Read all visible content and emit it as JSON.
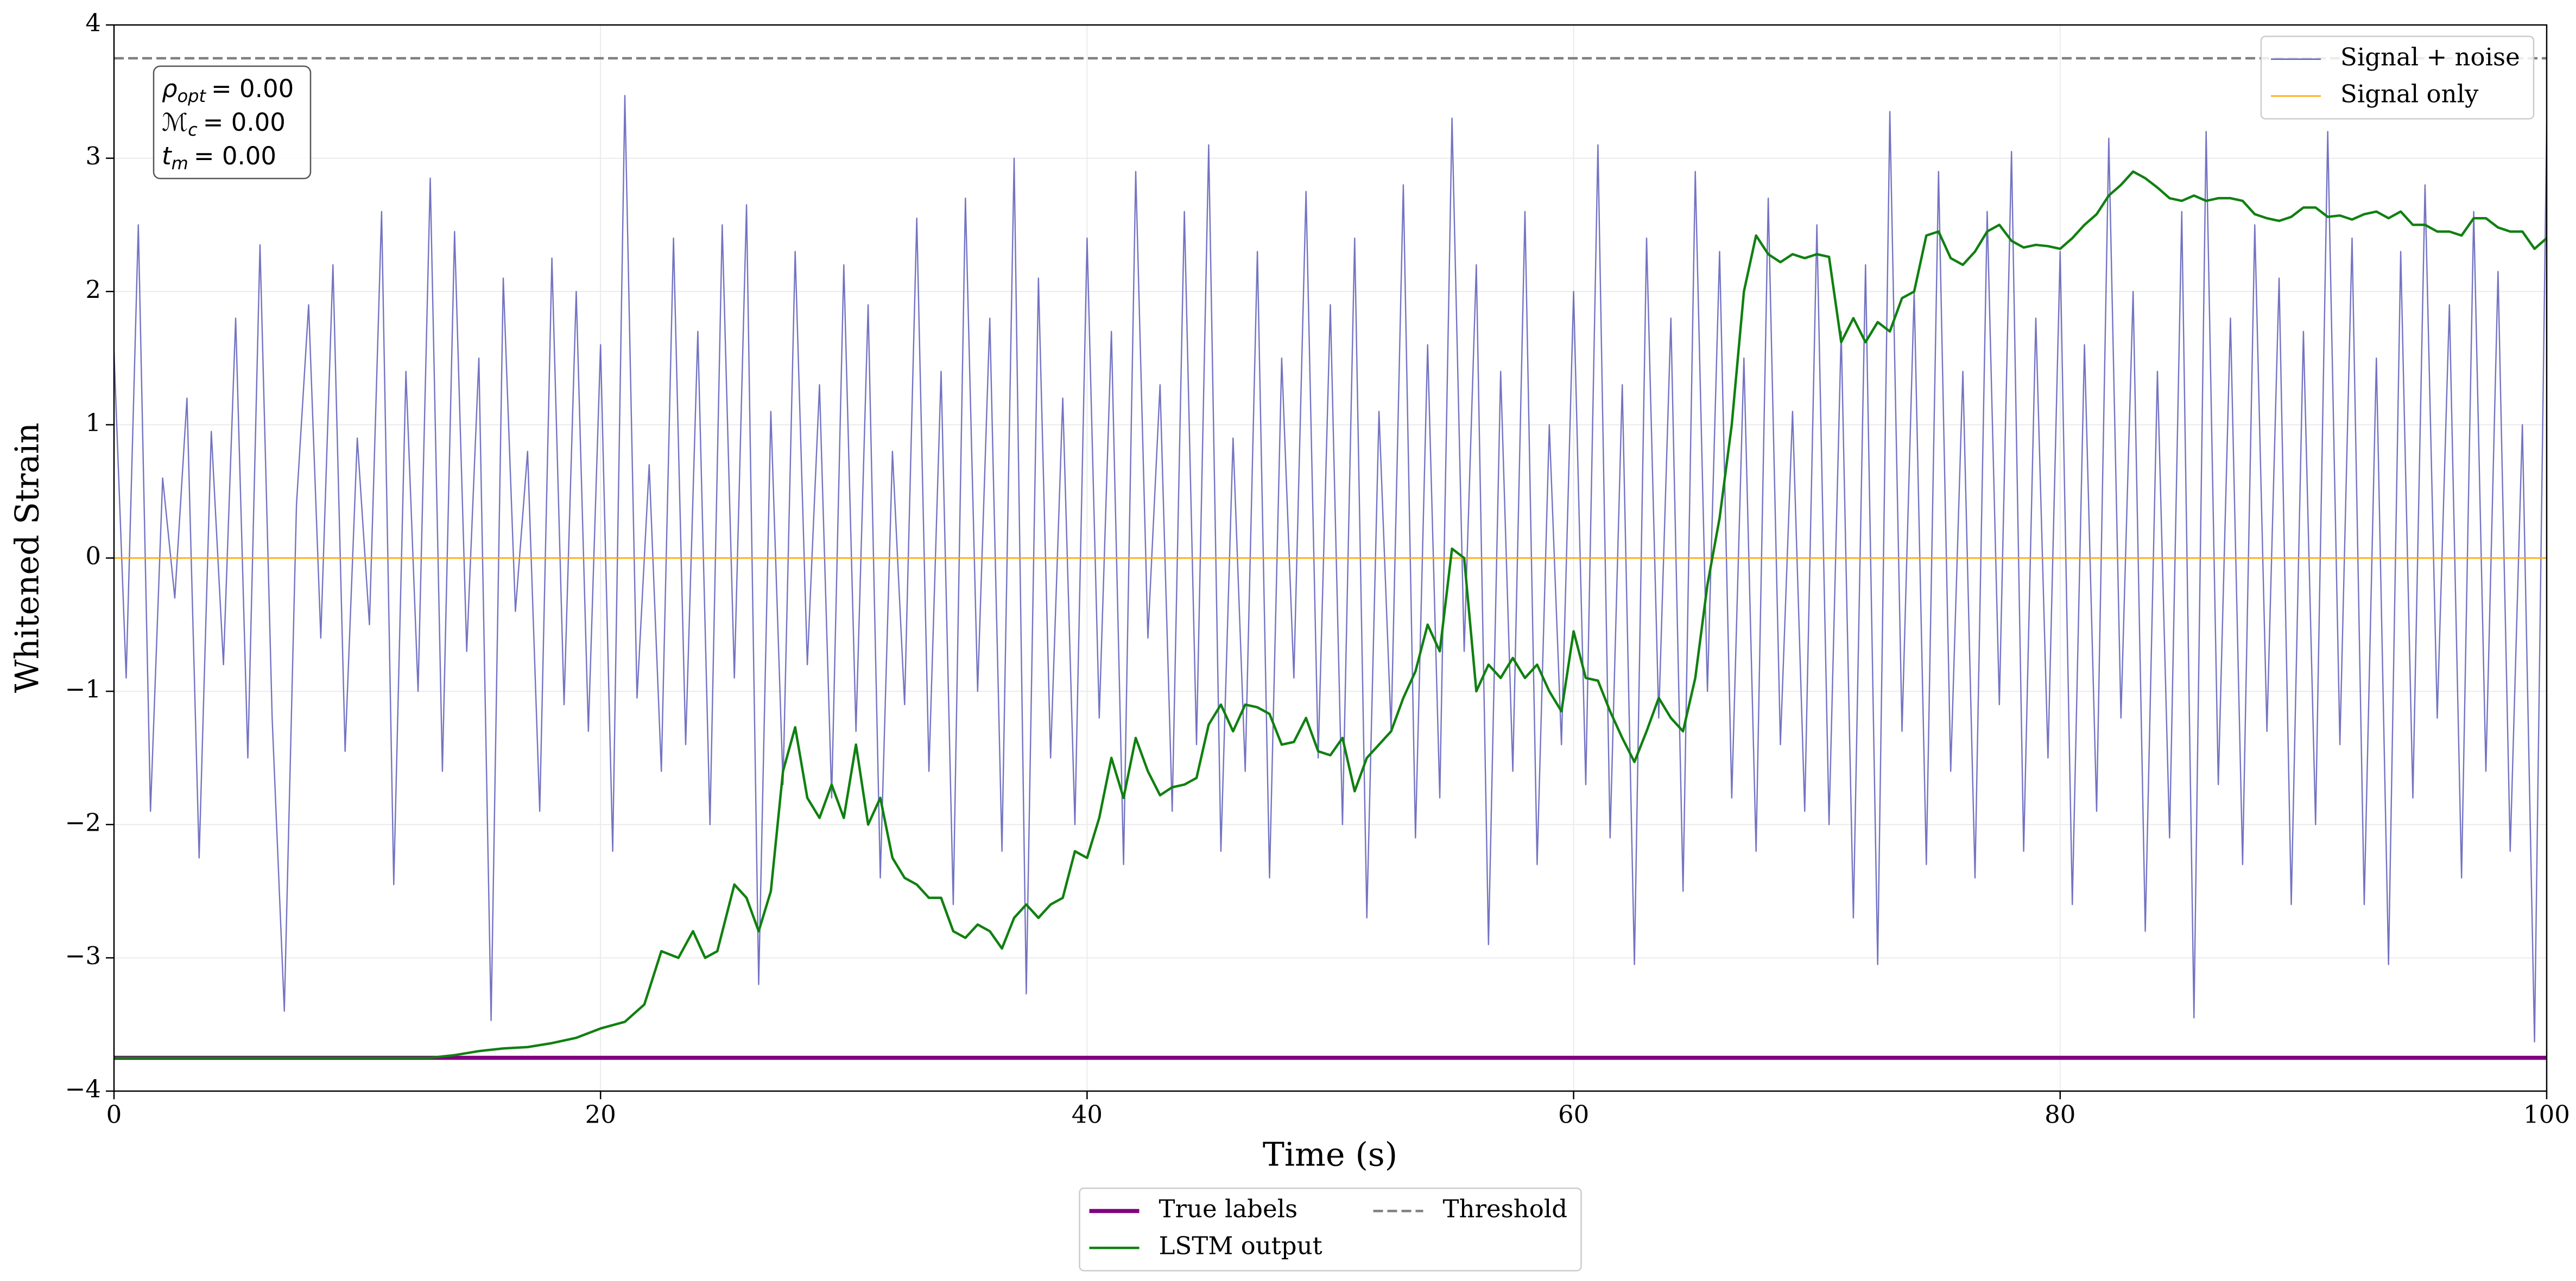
{
  "chart_data": {
    "type": "line",
    "xlabel": "Time (s)",
    "ylabel": "Whitened Strain",
    "xlim": [
      0,
      100
    ],
    "ylim": [
      -4,
      4
    ],
    "xticks": [
      0,
      20,
      40,
      60,
      80,
      100
    ],
    "yticks": [
      {
        "value": -4,
        "label": "−4"
      },
      {
        "value": -3,
        "label": "−3"
      },
      {
        "value": -2,
        "label": "−2"
      },
      {
        "value": -1,
        "label": "−1"
      },
      0,
      1,
      2,
      3,
      4
    ],
    "grid": true,
    "annotation": [
      {
        "symbol": "ρ",
        "subscript": "opt",
        "text": "= 0.00"
      },
      {
        "symbol": "ℳ",
        "subscript": "c",
        "text": "= 0.00"
      },
      {
        "symbol": "t",
        "subscript": "m",
        "text": "= 0.00"
      }
    ],
    "series": [
      {
        "name": "Signal + noise",
        "color": "#5b5bb8",
        "linewidth": 2.4,
        "linestyle": "solid",
        "legend": "upper right",
        "x": [
          0,
          0.5,
          1,
          1.5,
          2,
          2.5,
          3,
          3.5,
          4,
          4.5,
          5,
          5.5,
          6,
          6.5,
          7,
          7.5,
          8,
          8.5,
          9,
          9.5,
          10,
          10.5,
          11,
          11.5,
          12,
          12.5,
          13,
          13.5,
          14,
          14.5,
          15,
          15.5,
          16,
          16.5,
          17,
          17.5,
          18,
          18.5,
          19,
          19.5,
          20,
          20.5,
          21,
          21.5,
          22,
          22.5,
          23,
          23.5,
          24,
          24.5,
          25,
          25.5,
          26,
          26.5,
          27,
          27.5,
          28,
          28.5,
          29,
          29.5,
          30,
          30.5,
          31,
          31.5,
          32,
          32.5,
          33,
          33.5,
          34,
          34.5,
          35,
          35.5,
          36,
          36.5,
          37,
          37.5,
          38,
          38.5,
          39,
          39.5,
          40,
          40.5,
          41,
          41.5,
          42,
          42.5,
          43,
          43.5,
          44,
          44.5,
          45,
          45.5,
          46,
          46.5,
          47,
          47.5,
          48,
          48.5,
          49,
          49.5,
          50,
          50.5,
          51,
          51.5,
          52,
          52.5,
          53,
          53.5,
          54,
          54.5,
          55,
          55.5,
          56,
          56.5,
          57,
          57.5,
          58,
          58.5,
          59,
          59.5,
          60,
          60.5,
          61,
          61.5,
          62,
          62.5,
          63,
          63.5,
          64,
          64.5,
          65,
          65.5,
          66,
          66.5,
          67,
          67.5,
          68,
          68.5,
          69,
          69.5,
          70,
          70.5,
          71,
          71.5,
          72,
          72.5,
          73,
          73.5,
          74,
          74.5,
          75,
          75.5,
          76,
          76.5,
          77,
          77.5,
          78,
          78.5,
          79,
          79.5,
          80,
          80.5,
          81,
          81.5,
          82,
          82.5,
          83,
          83.5,
          84,
          84.5,
          85,
          85.5,
          86,
          86.5,
          87,
          87.5,
          88,
          88.5,
          89,
          89.5,
          90,
          90.5,
          91,
          91.5,
          92,
          92.5,
          93,
          93.5,
          94,
          94.5,
          95,
          95.5,
          96,
          96.5,
          97,
          97.5,
          98,
          98.5,
          99,
          99.5,
          100
        ],
        "values": [
          1.55,
          -0.9,
          2.5,
          -1.9,
          0.6,
          -0.3,
          1.2,
          -2.25,
          0.95,
          -0.8,
          1.8,
          -1.5,
          2.35,
          -1.2,
          -3.4,
          0.4,
          1.9,
          -0.6,
          2.2,
          -1.45,
          0.9,
          -0.5,
          2.6,
          -2.45,
          1.4,
          -1.0,
          2.85,
          -1.6,
          2.45,
          -0.7,
          1.5,
          -3.47,
          2.1,
          -0.4,
          0.8,
          -1.9,
          2.25,
          -1.1,
          2.0,
          -1.3,
          1.6,
          -2.2,
          3.47,
          -1.05,
          0.7,
          -1.6,
          2.4,
          -1.4,
          1.7,
          -2.0,
          2.5,
          -0.9,
          2.65,
          -3.2,
          1.1,
          -1.7,
          2.3,
          -0.8,
          1.3,
          -1.8,
          2.2,
          -1.3,
          1.9,
          -2.4,
          0.8,
          -1.1,
          2.55,
          -1.6,
          1.4,
          -2.6,
          2.7,
          -1.0,
          1.8,
          -2.2,
          3.0,
          -3.27,
          2.1,
          -1.5,
          1.2,
          -2.0,
          2.4,
          -1.2,
          1.7,
          -2.3,
          2.9,
          -0.6,
          1.3,
          -1.9,
          2.6,
          -1.4,
          3.1,
          -2.2,
          0.9,
          -1.6,
          2.3,
          -2.4,
          1.5,
          -0.9,
          2.75,
          -1.5,
          1.9,
          -2.0,
          2.4,
          -2.7,
          1.1,
          -1.3,
          2.8,
          -2.1,
          1.6,
          -1.8,
          3.3,
          -0.7,
          2.2,
          -2.9,
          1.4,
          -1.6,
          2.6,
          -2.3,
          1.0,
          -1.4,
          2.0,
          -1.7,
          3.1,
          -2.1,
          1.3,
          -3.05,
          2.4,
          -1.2,
          1.8,
          -2.5,
          2.9,
          -1.0,
          2.3,
          -1.8,
          1.5,
          -2.2,
          2.7,
          -1.4,
          1.1,
          -1.9,
          2.5,
          -2.0,
          1.7,
          -2.7,
          2.2,
          -3.05,
          3.35,
          -1.3,
          2.0,
          -2.3,
          2.9,
          -1.6,
          1.4,
          -2.4,
          2.6,
          -1.1,
          3.05,
          -2.2,
          1.8,
          -1.5,
          2.3,
          -2.6,
          1.6,
          -1.9,
          3.15,
          -1.2,
          2.0,
          -2.8,
          1.4,
          -2.1,
          2.6,
          -3.45,
          3.2,
          -1.7,
          1.8,
          -2.3,
          2.5,
          -1.3,
          2.1,
          -2.6,
          1.7,
          -2.0,
          3.2,
          -1.4,
          2.4,
          -2.6,
          1.5,
          -3.05,
          2.3,
          -1.8,
          2.8,
          -1.2,
          1.9,
          -2.4,
          2.6,
          -1.6,
          2.15,
          -2.2,
          1.0,
          -3.63,
          3.25
        ]
      },
      {
        "name": "Signal only",
        "color": "#ffa500",
        "linewidth": 2.4,
        "linestyle": "solid",
        "legend": "upper right",
        "x": [
          0,
          100
        ],
        "values": [
          0,
          0
        ]
      },
      {
        "name": "True labels",
        "color": "#800080",
        "linewidth": 7.5,
        "linestyle": "solid",
        "legend": "lower center outside",
        "x": [
          0,
          100
        ],
        "values": [
          -3.75,
          -3.75
        ]
      },
      {
        "name": "LSTM output",
        "color": "#108010",
        "linewidth": 4.5,
        "linestyle": "solid",
        "legend": "lower center outside",
        "x": [
          0,
          13,
          14,
          15,
          16,
          17,
          18,
          19,
          20,
          21,
          21.8,
          22.5,
          23.2,
          23.8,
          24.3,
          24.8,
          25.5,
          26,
          26.5,
          27,
          27.5,
          28,
          28.5,
          29,
          29.5,
          30,
          30.5,
          31,
          31.5,
          32,
          32.5,
          33,
          33.5,
          34,
          34.5,
          35,
          35.5,
          36,
          36.5,
          37,
          37.5,
          38,
          38.5,
          39,
          39.5,
          40,
          40.5,
          41,
          41.5,
          42,
          42.5,
          43,
          43.5,
          44,
          44.5,
          45,
          45.5,
          46,
          46.5,
          47,
          47.5,
          48,
          48.5,
          49,
          49.5,
          50,
          50.5,
          51,
          51.5,
          52,
          52.5,
          53,
          53.5,
          54,
          54.5,
          55,
          55.5,
          56,
          56.5,
          57,
          57.5,
          58,
          58.5,
          59,
          59.5,
          60,
          60.5,
          61,
          61.5,
          62,
          62.5,
          63,
          63.5,
          64,
          64.5,
          65,
          65.5,
          66,
          66.5,
          67,
          67.5,
          68,
          68.5,
          69,
          69.5,
          70,
          70.5,
          71,
          71.5,
          72,
          72.5,
          73,
          73.5,
          74,
          74.5,
          75,
          75.5,
          76,
          76.5,
          77,
          77.5,
          78,
          78.5,
          79,
          79.5,
          80,
          80.5,
          81,
          81.5,
          82,
          82.5,
          83,
          83.5,
          84,
          84.5,
          85,
          85.5,
          86,
          86.5,
          87,
          87.5,
          88,
          88.5,
          89,
          89.5,
          90,
          90.5,
          91,
          91.5,
          92,
          92.5,
          93,
          93.5,
          94,
          94.5,
          95,
          95.5,
          96,
          96.5,
          97,
          97.5,
          98,
          98.5,
          99,
          99.5,
          100
        ],
        "values": [
          -3.75,
          -3.75,
          -3.73,
          -3.7,
          -3.68,
          -3.67,
          -3.64,
          -3.6,
          -3.53,
          -3.48,
          -3.35,
          -2.95,
          -3.0,
          -2.8,
          -3.0,
          -2.95,
          -2.45,
          -2.55,
          -2.8,
          -2.5,
          -1.6,
          -1.27,
          -1.8,
          -1.95,
          -1.7,
          -1.95,
          -1.4,
          -2.0,
          -1.8,
          -2.25,
          -2.4,
          -2.45,
          -2.55,
          -2.55,
          -2.8,
          -2.85,
          -2.75,
          -2.8,
          -2.93,
          -2.7,
          -2.6,
          -2.7,
          -2.6,
          -2.55,
          -2.2,
          -2.25,
          -1.95,
          -1.5,
          -1.8,
          -1.35,
          -1.6,
          -1.78,
          -1.72,
          -1.7,
          -1.65,
          -1.25,
          -1.1,
          -1.3,
          -1.1,
          -1.12,
          -1.17,
          -1.4,
          -1.38,
          -1.2,
          -1.45,
          -1.48,
          -1.35,
          -1.75,
          -1.5,
          -1.4,
          -1.3,
          -1.05,
          -0.85,
          -0.5,
          -0.7,
          0.07,
          0.0,
          -1.0,
          -0.8,
          -0.9,
          -0.75,
          -0.9,
          -0.8,
          -1.0,
          -1.15,
          -0.55,
          -0.9,
          -0.92,
          -1.15,
          -1.35,
          -1.53,
          -1.3,
          -1.05,
          -1.2,
          -1.3,
          -0.9,
          -0.2,
          0.3,
          1.0,
          2.0,
          2.42,
          2.28,
          2.22,
          2.28,
          2.25,
          2.28,
          2.26,
          1.62,
          1.8,
          1.62,
          1.77,
          1.7,
          1.95,
          2.0,
          2.42,
          2.45,
          2.25,
          2.2,
          2.3,
          2.45,
          2.5,
          2.38,
          2.33,
          2.35,
          2.34,
          2.32,
          2.4,
          2.5,
          2.58,
          2.72,
          2.8,
          2.9,
          2.85,
          2.78,
          2.7,
          2.68,
          2.72,
          2.68,
          2.7,
          2.7,
          2.68,
          2.58,
          2.55,
          2.53,
          2.56,
          2.63,
          2.63,
          2.56,
          2.57,
          2.54,
          2.58,
          2.6,
          2.55,
          2.6,
          2.5,
          2.5,
          2.45,
          2.45,
          2.42,
          2.55,
          2.55,
          2.48,
          2.45,
          2.45,
          2.32,
          2.4
        ]
      },
      {
        "name": "Threshold",
        "color": "#808080",
        "linewidth": 4.5,
        "linestyle": "dashed",
        "legend": "lower center outside",
        "x": [
          0,
          100
        ],
        "values": [
          3.75,
          3.75
        ]
      }
    ]
  }
}
